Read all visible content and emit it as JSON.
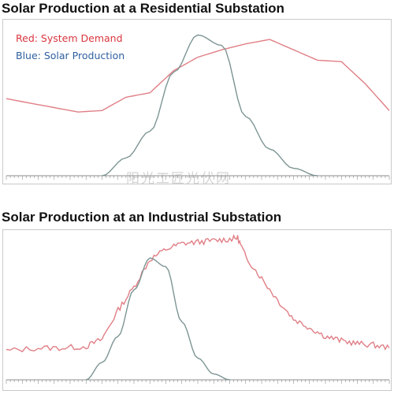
{
  "colors": {
    "demand": "#e07f86",
    "solar": "#7d9494",
    "axis": "#8c8c8c"
  },
  "watermark": "阳光工匠光伏网",
  "chart_data": [
    {
      "type": "line",
      "title": "Solar Production at a Residential Substation",
      "legend": [
        "Red: System Demand",
        "Blue: Solar Production"
      ],
      "legend_colors": [
        "#d9363e",
        "#2e5fa0"
      ],
      "x": [
        0,
        3,
        4.5,
        6,
        7.5,
        9,
        10.5,
        12,
        13.5,
        15,
        16.5,
        18,
        19.5,
        21,
        22.5,
        24
      ],
      "series": [
        {
          "name": "System Demand",
          "color": "#e07f86",
          "values": [
            0.52,
            0.46,
            0.43,
            0.44,
            0.53,
            0.56,
            0.71,
            0.8,
            0.85,
            0.89,
            0.92,
            0.85,
            0.78,
            0.77,
            0.62,
            0.44
          ]
        },
        {
          "name": "Solar Production",
          "color": "#7d9494",
          "values": [
            null,
            null,
            null,
            0.0,
            0.12,
            0.3,
            0.7,
            0.95,
            0.88,
            0.4,
            0.18,
            0.05,
            0.0,
            null,
            null,
            null
          ]
        }
      ],
      "xlim": [
        0,
        24
      ],
      "ylim": [
        0,
        1
      ]
    },
    {
      "type": "line",
      "title": "Solar Production at an Industrial Substation",
      "x": [
        0,
        2,
        3.5,
        5,
        6,
        7,
        8,
        9,
        10,
        11,
        12,
        13,
        14,
        14.5,
        15,
        16,
        17,
        18,
        19,
        20,
        21,
        22,
        23,
        24
      ],
      "series": [
        {
          "name": "System Demand",
          "color": "#e07f86",
          "values": [
            0.2,
            0.22,
            0.22,
            0.23,
            0.28,
            0.48,
            0.64,
            0.83,
            0.9,
            0.94,
            0.95,
            0.96,
            0.97,
            0.98,
            0.85,
            0.7,
            0.55,
            0.42,
            0.36,
            0.3,
            0.27,
            0.25,
            0.24,
            0.22
          ]
        },
        {
          "name": "Solar Production",
          "color": "#7d9494",
          "values": [
            null,
            null,
            null,
            0.0,
            0.12,
            0.3,
            0.62,
            0.84,
            0.78,
            0.4,
            0.15,
            0.04,
            0.0,
            null,
            null,
            null,
            null,
            null,
            null,
            null,
            null,
            null,
            null,
            null
          ]
        }
      ],
      "xlim": [
        0,
        24
      ],
      "ylim": [
        0,
        1
      ]
    }
  ]
}
